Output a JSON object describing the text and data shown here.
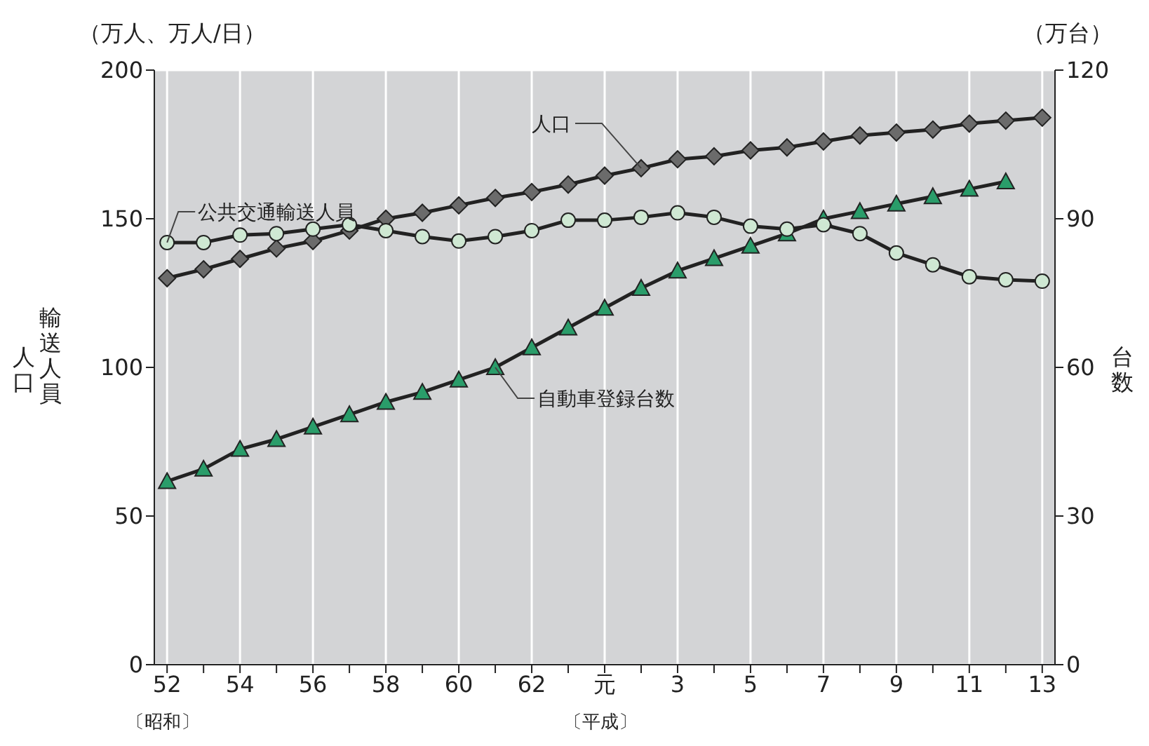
{
  "chart_data": {
    "type": "line",
    "categories": [
      "52",
      null,
      "54",
      null,
      "56",
      null,
      "58",
      null,
      "60",
      null,
      "62",
      null,
      "元",
      null,
      "3",
      null,
      "5",
      null,
      "7",
      null,
      "9",
      null,
      "11",
      null,
      "13"
    ],
    "series": [
      {
        "name": "人口",
        "color": "#6b6b6b",
        "marker": "diamond",
        "values": [
          130,
          133,
          136.5,
          140,
          142.5,
          146,
          150,
          152,
          154.5,
          157,
          159,
          161.5,
          164.5,
          167,
          170,
          171,
          173,
          174,
          176,
          178,
          179,
          180,
          182,
          183,
          184
        ]
      },
      {
        "name": "公共交通輸送人員",
        "color": "#cfe8d3",
        "marker": "circle",
        "values": [
          142,
          142,
          144.5,
          145,
          146.5,
          148,
          146,
          144,
          142.5,
          144,
          146,
          149.5,
          149.5,
          150.5,
          152,
          150.5,
          147.5,
          146.5,
          148,
          145,
          138.5,
          134.5,
          130.5,
          129.5,
          129
        ]
      },
      {
        "name": "自動車登録台数",
        "color": "#2a9d6a",
        "marker": "triangle",
        "axis": "y2",
        "values": [
          37,
          39.5,
          43.5,
          45.5,
          48,
          50.5,
          53,
          55,
          57.5,
          60,
          64,
          68,
          72,
          76,
          79.5,
          82,
          84.5,
          87,
          90,
          91.5,
          93,
          94.5,
          96,
          97.5,
          null
        ]
      }
    ],
    "ylabel": "人口輸送人員",
    "y2label": "台数",
    "ylim": [
      0,
      200
    ],
    "yticks": [
      0,
      50,
      100,
      150,
      200
    ],
    "y2lim": [
      0,
      120
    ],
    "y2ticks": [
      0,
      30,
      60,
      90,
      120
    ],
    "grid": true,
    "legend": false,
    "line_style": "solid",
    "annotations": [
      "（万人、万人/日）",
      "（万台）",
      "〔昭和〕",
      "〔平成〕"
    ]
  }
}
